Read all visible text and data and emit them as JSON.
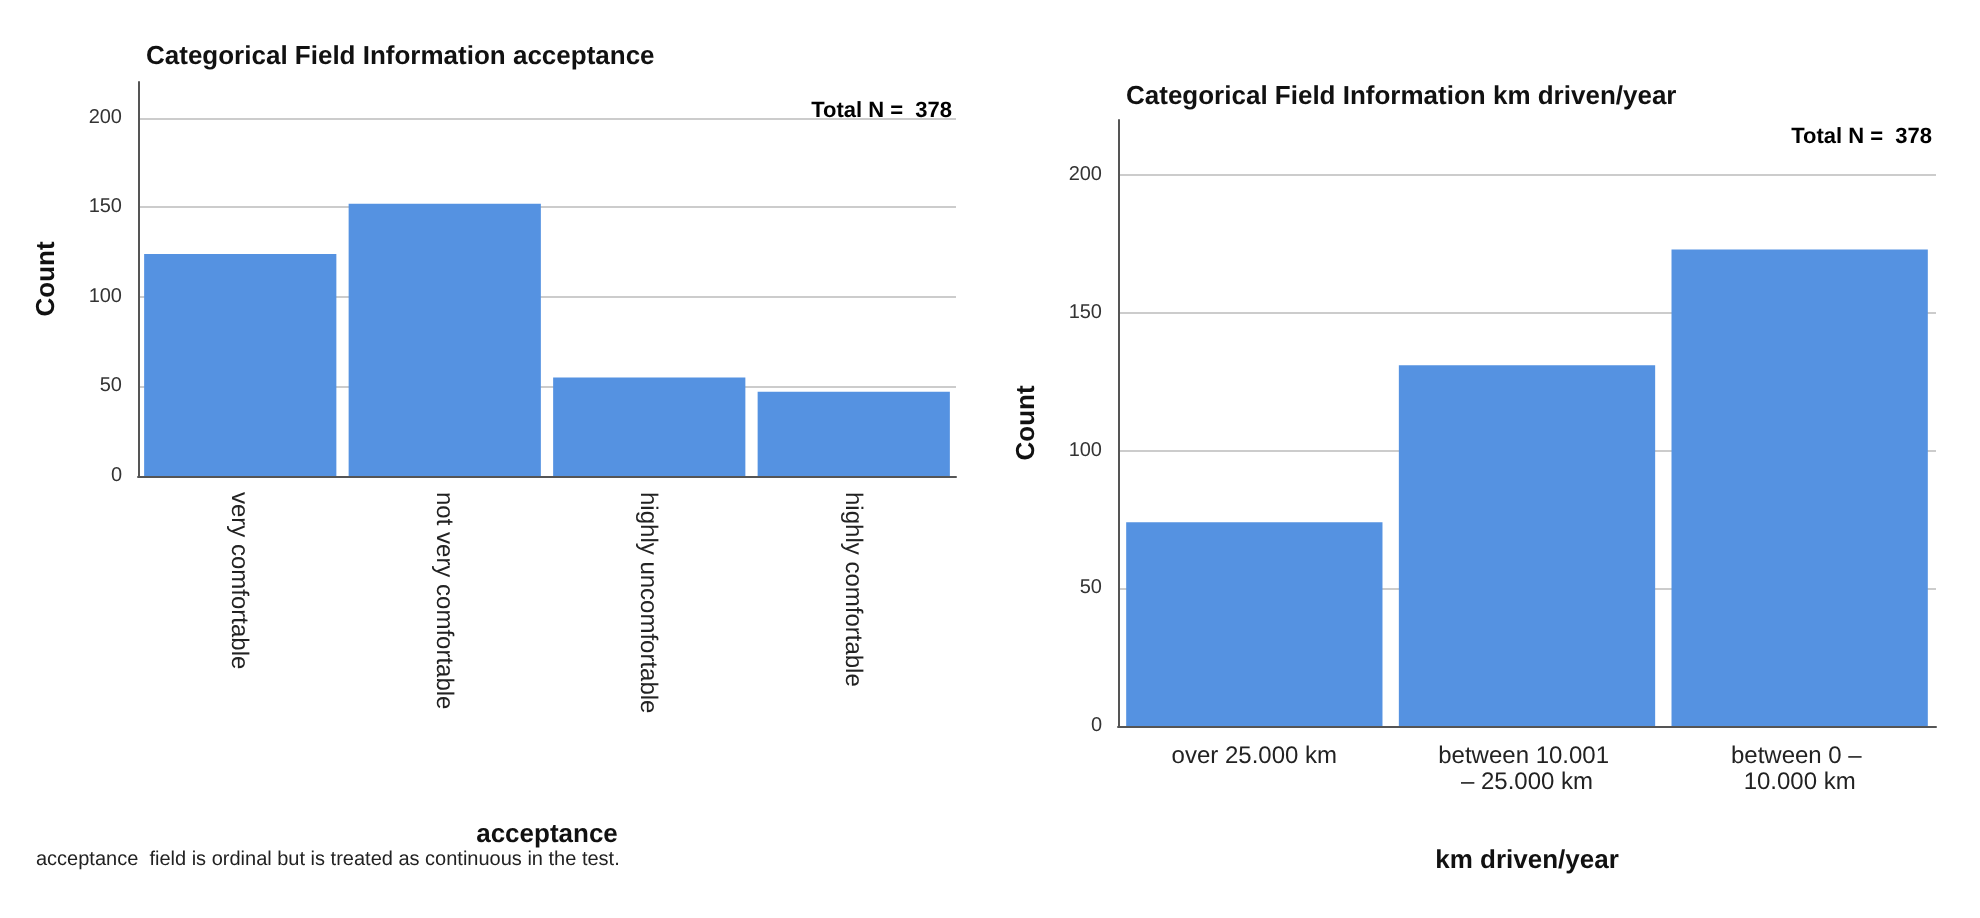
{
  "chart_data": [
    {
      "type": "bar",
      "title": "Categorical Field Information acceptance",
      "xlabel": "acceptance",
      "ylabel": "Count",
      "categories": [
        "very comfortable",
        "not very comfortable",
        "highly uncomfortable",
        "highly comfortable"
      ],
      "values": [
        124,
        152,
        55,
        47
      ],
      "color": "#5592e1",
      "ylim": [
        0,
        220
      ],
      "yticks": [
        0,
        50,
        100,
        150,
        200
      ],
      "grid": "y",
      "annotations": [
        "Total N =  378",
        "acceptance  field is ordinal but is treated as continuous in the test."
      ]
    },
    {
      "type": "bar",
      "title": "Categorical Field Information km driven/year",
      "xlabel": "km driven/year",
      "ylabel": "Count",
      "categories": [
        "over 25.000 km",
        "between 10.001 – 25.000 km",
        "between 0 – 10.000 km"
      ],
      "values": [
        74,
        131,
        173
      ],
      "color": "#5592e1",
      "ylim": [
        0,
        220
      ],
      "yticks": [
        0,
        50,
        100,
        150,
        200
      ],
      "grid": "y",
      "annotations": [
        "Total N =  378"
      ]
    }
  ]
}
